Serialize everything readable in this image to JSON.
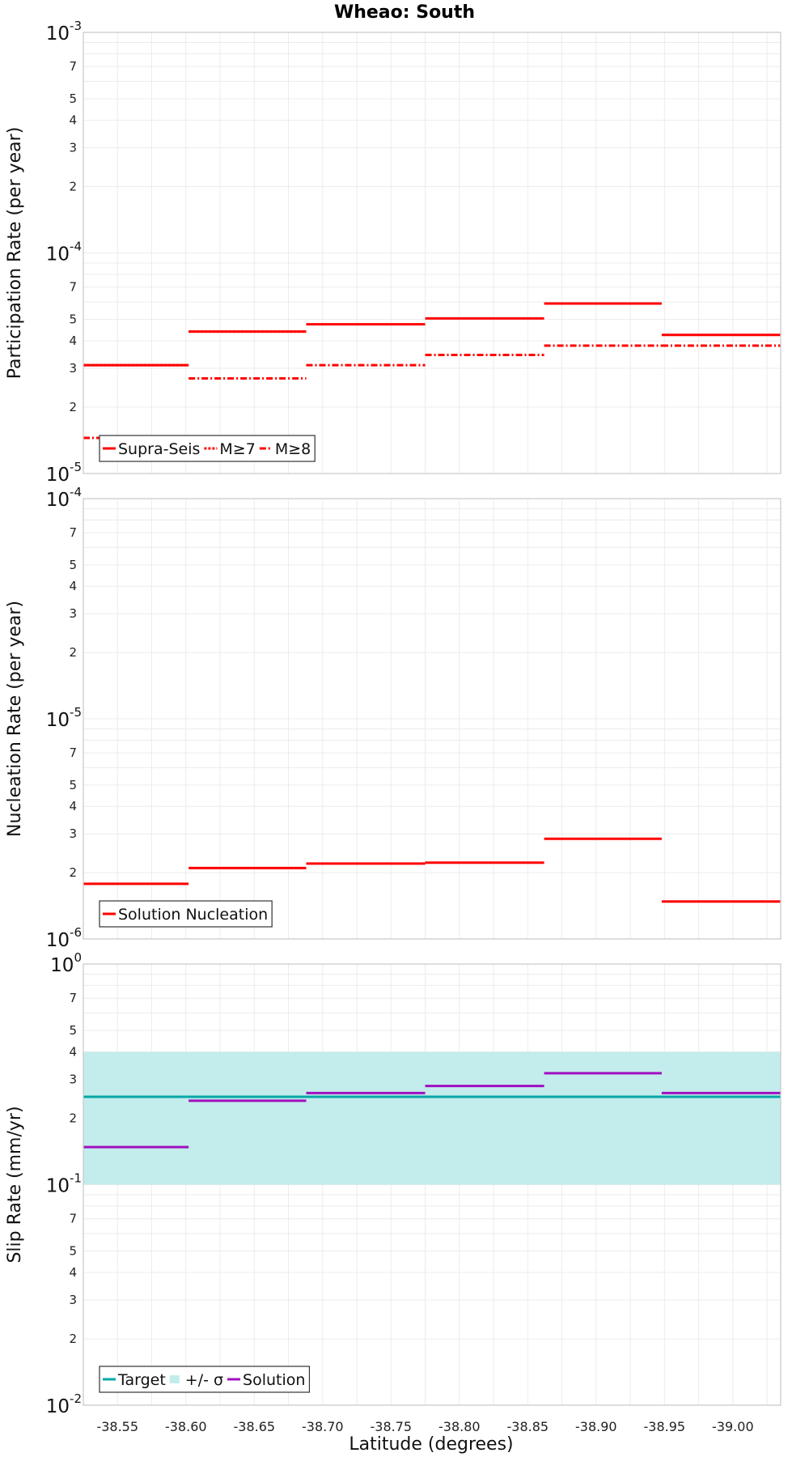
{
  "title": "Wheao: South",
  "xlabel": "Latitude (degrees)",
  "x_ticks": [
    "-38.55",
    "-38.60",
    "-38.65",
    "-38.70",
    "-38.75",
    "-38.80",
    "-38.85",
    "-38.90",
    "-38.95",
    "-39.00"
  ],
  "colors": {
    "red": "#ff0000",
    "target": "#00a8a8",
    "band": "#c3ecec",
    "solution": "#a010c0",
    "grid": "#ececec",
    "frame": "#c8c8c8"
  },
  "chart_data": [
    {
      "type": "line",
      "name": "participation",
      "ylabel": "Participation Rate (per year)",
      "yscale": "log",
      "ylim": [
        1e-05,
        0.001
      ],
      "xlim": [
        -38.525,
        -39.035
      ],
      "y_decade_labels": [
        {
          "base": "10",
          "exp": "-5"
        },
        {
          "base": "10",
          "exp": "-4"
        },
        {
          "base": "10",
          "exp": "-3"
        }
      ],
      "y_minor_labels": [
        "2",
        "3",
        "4",
        "5",
        "7"
      ],
      "legend": [
        "Supra-Seis",
        "M≥7",
        "M≥8"
      ],
      "series": [
        {
          "name": "Supra-Seis",
          "style": "solid",
          "segments": [
            {
              "x0": -38.525,
              "x1": -38.602,
              "y": 3.1e-05
            },
            {
              "x0": -38.602,
              "x1": -38.688,
              "y": 4.4e-05
            },
            {
              "x0": -38.688,
              "x1": -38.775,
              "y": 4.75e-05
            },
            {
              "x0": -38.775,
              "x1": -38.862,
              "y": 5.05e-05
            },
            {
              "x0": -38.862,
              "x1": -38.948,
              "y": 5.9e-05
            },
            {
              "x0": -38.948,
              "x1": -39.035,
              "y": 4.25e-05
            }
          ]
        },
        {
          "name": "M≥7",
          "style": "dotted",
          "segments": [
            {
              "x0": -38.525,
              "x1": -38.602,
              "y": 3.1e-05
            },
            {
              "x0": -38.602,
              "x1": -38.688,
              "y": 4.4e-05
            }
          ]
        },
        {
          "name": "M≥8",
          "style": "dashdot",
          "segments": [
            {
              "x0": -38.525,
              "x1": -38.602,
              "y": 1.45e-05
            },
            {
              "x0": -38.602,
              "x1": -38.688,
              "y": 2.7e-05
            },
            {
              "x0": -38.688,
              "x1": -38.775,
              "y": 3.1e-05
            },
            {
              "x0": -38.775,
              "x1": -38.862,
              "y": 3.45e-05
            },
            {
              "x0": -38.862,
              "x1": -38.948,
              "y": 3.8e-05
            },
            {
              "x0": -38.948,
              "x1": -39.035,
              "y": 3.8e-05
            }
          ]
        }
      ]
    },
    {
      "type": "line",
      "name": "nucleation",
      "ylabel": "Nucleation Rate (per year)",
      "yscale": "log",
      "ylim": [
        1e-06,
        0.0001
      ],
      "xlim": [
        -38.525,
        -39.035
      ],
      "y_decade_labels": [
        {
          "base": "10",
          "exp": "-6"
        },
        {
          "base": "10",
          "exp": "-5"
        },
        {
          "base": "10",
          "exp": "-4"
        }
      ],
      "y_minor_labels": [
        "2",
        "3",
        "4",
        "5",
        "7"
      ],
      "legend": [
        "Solution Nucleation"
      ],
      "series": [
        {
          "name": "Solution Nucleation",
          "style": "solid",
          "segments": [
            {
              "x0": -38.525,
              "x1": -38.602,
              "y": 1.78e-06
            },
            {
              "x0": -38.602,
              "x1": -38.688,
              "y": 2.1e-06
            },
            {
              "x0": -38.688,
              "x1": -38.775,
              "y": 2.2e-06
            },
            {
              "x0": -38.775,
              "x1": -38.862,
              "y": 2.22e-06
            },
            {
              "x0": -38.862,
              "x1": -38.948,
              "y": 2.85e-06
            },
            {
              "x0": -38.948,
              "x1": -39.035,
              "y": 1.48e-06
            }
          ]
        }
      ]
    },
    {
      "type": "line",
      "name": "slip",
      "ylabel": "Slip Rate (mm/yr)",
      "yscale": "log",
      "ylim": [
        0.01,
        1
      ],
      "xlim": [
        -38.525,
        -39.035
      ],
      "y_decade_labels": [
        {
          "base": "10",
          "exp": "-2"
        },
        {
          "base": "10",
          "exp": "-1"
        },
        {
          "base": "10",
          "exp": "0"
        }
      ],
      "y_minor_labels": [
        "2",
        "3",
        "4",
        "5",
        "7"
      ],
      "legend": [
        "Target",
        "+/- σ",
        "Solution"
      ],
      "band": {
        "name": "+/- σ",
        "low": 0.1,
        "high": 0.4
      },
      "series": [
        {
          "name": "Target",
          "style": "solid",
          "color": "target",
          "segments": [
            {
              "x0": -38.525,
              "x1": -39.035,
              "y": 0.25
            }
          ]
        },
        {
          "name": "Solution",
          "style": "solid",
          "color": "solution",
          "segments": [
            {
              "x0": -38.525,
              "x1": -38.602,
              "y": 0.148
            },
            {
              "x0": -38.602,
              "x1": -38.688,
              "y": 0.24
            },
            {
              "x0": -38.688,
              "x1": -38.775,
              "y": 0.26
            },
            {
              "x0": -38.775,
              "x1": -38.862,
              "y": 0.28
            },
            {
              "x0": -38.862,
              "x1": -38.948,
              "y": 0.32
            },
            {
              "x0": -38.948,
              "x1": -39.035,
              "y": 0.26
            }
          ]
        }
      ]
    }
  ]
}
